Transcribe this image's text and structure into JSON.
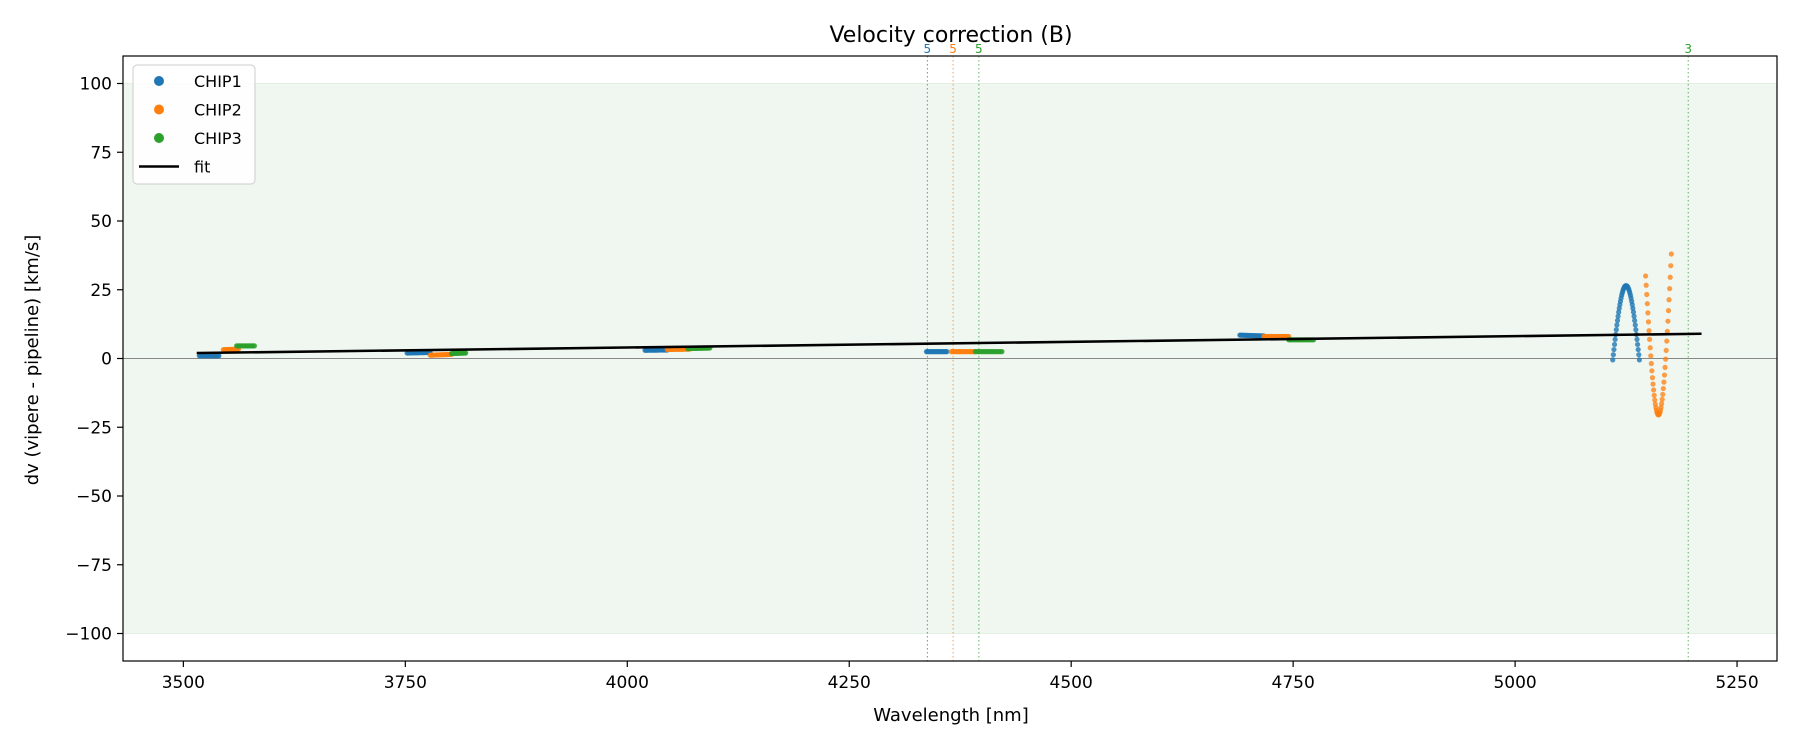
{
  "chart_data": {
    "type": "scatter",
    "title": "Velocity correction (B)",
    "xlabel": "Wavelength [nm]",
    "ylabel": "dv (vipere - pipeline) [km/s]",
    "xlim": [
      3432,
      5295
    ],
    "ylim": [
      -110,
      110
    ],
    "xticks": [
      3500,
      3750,
      4000,
      4250,
      4500,
      4750,
      5000,
      5250
    ],
    "yticks": [
      -100,
      -75,
      -50,
      -25,
      0,
      25,
      50,
      75,
      100
    ],
    "tolerance_band": [
      -100,
      100
    ],
    "band_color": "#f0f7f0",
    "zero_line": 0,
    "legend": {
      "placement": "top-left",
      "entries": [
        {
          "label": "CHIP1",
          "kind": "marker",
          "color": "#1f77b4"
        },
        {
          "label": "CHIP2",
          "kind": "marker",
          "color": "#ff7f0e"
        },
        {
          "label": "CHIP3",
          "kind": "marker",
          "color": "#2ca02c"
        },
        {
          "label": "fit",
          "kind": "line",
          "color": "#000000"
        }
      ]
    },
    "series": [
      {
        "name": "CHIP1",
        "color": "#1f77b4",
        "segments": [
          {
            "x0": 3518,
            "x1": 3540,
            "y0": 1.0,
            "y1": 1.0,
            "n": 18
          },
          {
            "x0": 3752,
            "x1": 3778,
            "y0": 2.0,
            "y1": 2.2,
            "n": 20
          },
          {
            "x0": 4020,
            "x1": 4045,
            "y0": 3.0,
            "y1": 3.1,
            "n": 20
          },
          {
            "x0": 4337,
            "x1": 4360,
            "y0": 2.5,
            "y1": 2.5,
            "n": 18
          },
          {
            "x0": 4690,
            "x1": 4717,
            "y0": 8.5,
            "y1": 8.2,
            "n": 20
          }
        ],
        "arch": {
          "x0": 5110,
          "x1": 5140,
          "base": -0.5,
          "peak": 26.5,
          "n": 46
        }
      },
      {
        "name": "CHIP2",
        "color": "#ff7f0e",
        "segments": [
          {
            "x0": 3545,
            "x1": 3562,
            "y0": 3.2,
            "y1": 3.4,
            "n": 14
          },
          {
            "x0": 3778,
            "x1": 3802,
            "y0": 1.2,
            "y1": 1.5,
            "n": 18
          },
          {
            "x0": 4045,
            "x1": 4070,
            "y0": 3.3,
            "y1": 3.4,
            "n": 20
          },
          {
            "x0": 4365,
            "x1": 4392,
            "y0": 2.5,
            "y1": 2.5,
            "n": 18
          },
          {
            "x0": 4717,
            "x1": 4745,
            "y0": 8.0,
            "y1": 8.0,
            "n": 20
          }
        ],
        "dip": {
          "x0": 5147,
          "x1": 5176,
          "left": 30.0,
          "bottom": -20.5,
          "right": 38.0,
          "n": 46
        }
      },
      {
        "name": "CHIP3",
        "color": "#2ca02c",
        "segments": [
          {
            "x0": 3560,
            "x1": 3580,
            "y0": 4.6,
            "y1": 4.6,
            "n": 14
          },
          {
            "x0": 3802,
            "x1": 3818,
            "y0": 1.8,
            "y1": 2.0,
            "n": 14
          },
          {
            "x0": 4068,
            "x1": 4093,
            "y0": 3.6,
            "y1": 3.8,
            "n": 18
          },
          {
            "x0": 4392,
            "x1": 4422,
            "y0": 2.5,
            "y1": 2.5,
            "n": 18
          },
          {
            "x0": 4745,
            "x1": 4773,
            "y0": 6.8,
            "y1": 6.8,
            "n": 20
          }
        ]
      }
    ],
    "fit": {
      "x": [
        3515,
        5210
      ],
      "y": [
        2.0,
        9.0
      ],
      "color": "#000000"
    },
    "vlines": [
      {
        "x": 4338,
        "label": "5",
        "color": "#1f77b4"
      },
      {
        "x": 4367,
        "label": "5",
        "color": "#ff7f0e"
      },
      {
        "x": 4396,
        "label": "5",
        "color": "#2ca02c"
      },
      {
        "x": 5195,
        "label": "3",
        "color": "#2ca02c"
      }
    ]
  }
}
